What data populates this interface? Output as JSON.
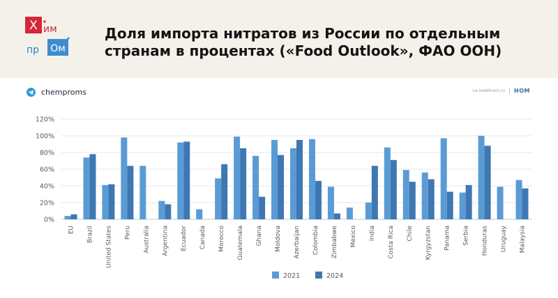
{
  "header": {
    "logo_letters": [
      "Х",
      "им",
      "пр",
      "Ом"
    ],
    "title_lines": [
      "Доля импорта нитратов из России по отдельным",
      "странам в процентах («Food Outlook», ФАО ООН)"
    ]
  },
  "panel": {
    "brand_name": "chemproms",
    "source_url": "na.newikrom.ru",
    "source_mark": "НОМ"
  },
  "colors": {
    "series_2021": "#5b9bd5",
    "series_2024": "#3f77b3",
    "logo_red": "#d6263a",
    "logo_blue": "#3f8ccc",
    "telegram": "#2f9bd6"
  },
  "chart_data": {
    "type": "bar",
    "categories": [
      "EU",
      "Brazil",
      "United States",
      "Peru",
      "Australia",
      "Argentina",
      "Ecuador",
      "Canada",
      "Morocco",
      "Guatemala",
      "Ghana",
      "Moldova",
      "Azerbaijan",
      "Colombia",
      "Zimbabwe",
      "Mexico",
      "India",
      "Costa Rica",
      "Chile",
      "Kyrgyzstan",
      "Panama",
      "Serbia",
      "Honduras",
      "Uruguay",
      "Malaysia"
    ],
    "series": [
      {
        "name": "2021",
        "values": [
          4,
          74,
          41,
          98,
          64,
          22,
          92,
          12,
          49,
          99,
          76,
          95,
          85,
          96,
          39,
          14,
          20,
          86,
          59,
          56,
          97,
          32,
          100,
          39,
          47
        ]
      },
      {
        "name": "2024",
        "values": [
          6,
          78,
          42,
          64,
          null,
          18,
          93,
          null,
          66,
          85,
          27,
          77,
          95,
          46,
          7,
          null,
          64,
          71,
          45,
          48,
          33,
          41,
          88,
          null,
          37
        ]
      }
    ],
    "yticks": [
      "0%",
      "20%",
      "40%",
      "60%",
      "80%",
      "100%",
      "120%"
    ],
    "ylim": [
      0,
      120
    ],
    "grid": true,
    "legend": "bottom-center",
    "legend_labels": [
      "2021",
      "2024"
    ]
  }
}
